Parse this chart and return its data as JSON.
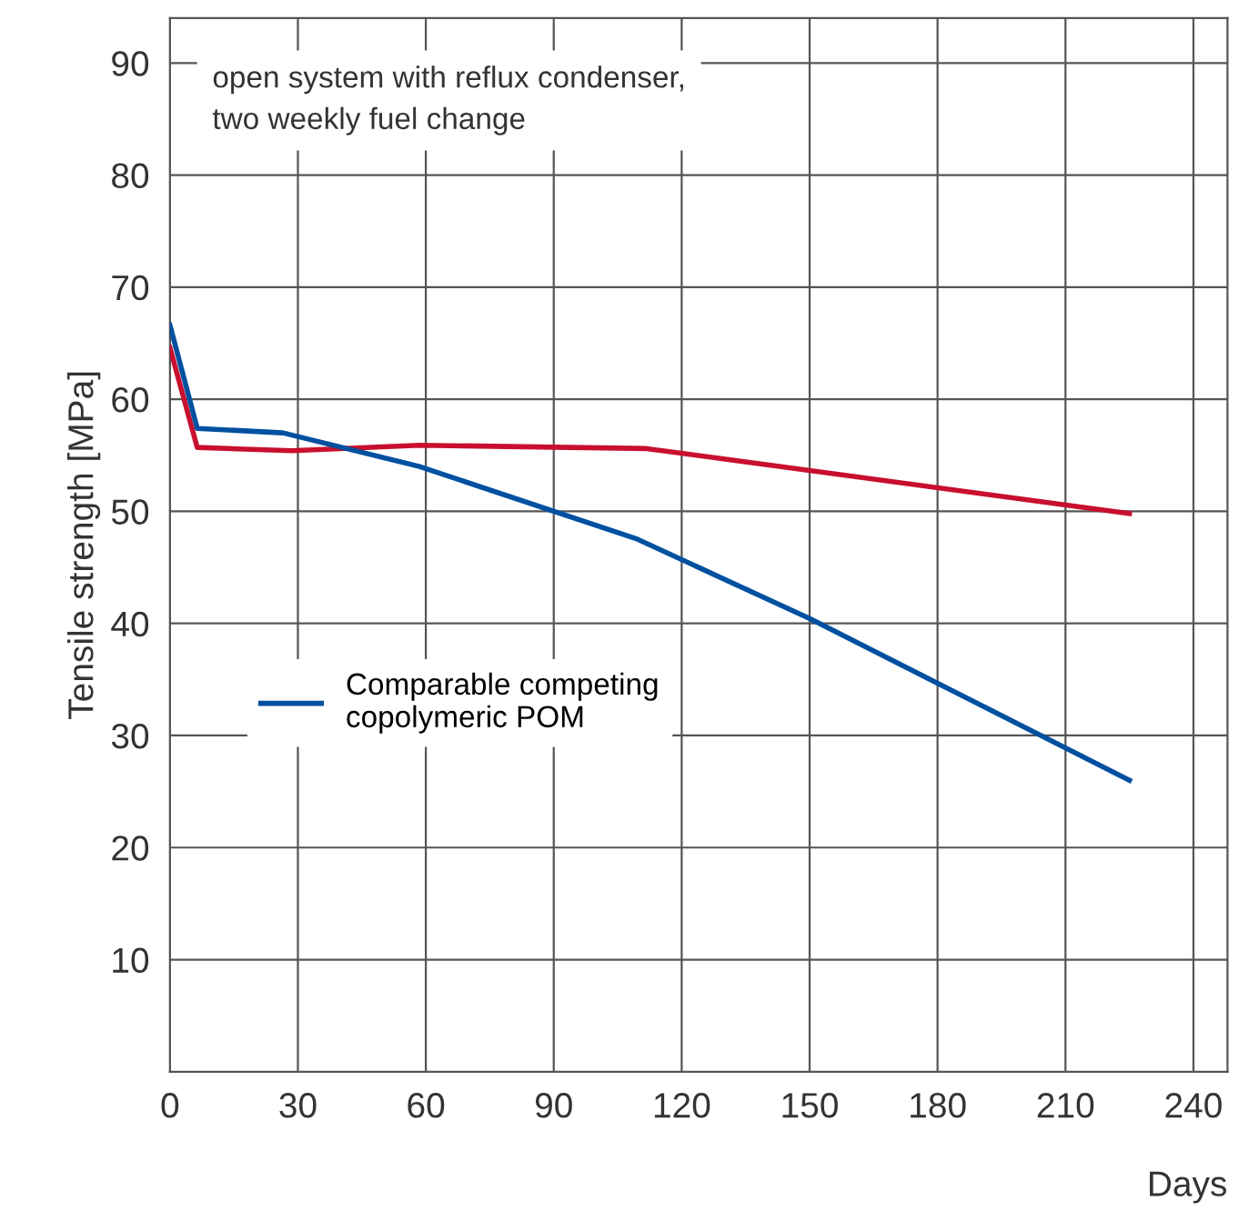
{
  "chart_data": {
    "type": "line",
    "xlabel": "Days",
    "ylabel": "Tensile strength [MPa]",
    "annotations": [
      "open system with reflux condenser,\ntwo weekly fuel change"
    ],
    "series": [
      {
        "color": "#c8102e",
        "x": [
          0,
          6.4,
          28.6,
          58.5,
          111.8,
          225
        ],
        "values": [
          64.6,
          55.7,
          55.4,
          55.9,
          55.6,
          49.8
        ]
      },
      {
        "name": "Comparable competing\ncopolymeric POM",
        "color": "#0050a0",
        "x": [
          0,
          6.4,
          26.5,
          58.5,
          109.7,
          150.2,
          225
        ],
        "values": [
          66.6,
          57.4,
          57.0,
          54.0,
          47.5,
          40.4,
          26.0
        ]
      }
    ],
    "xlim": [
      0,
      248
    ],
    "xticks": [
      0,
      30,
      60,
      90,
      120,
      150,
      180,
      210,
      240
    ],
    "ylim": [
      0,
      94
    ],
    "yticks": [
      10,
      20,
      30,
      40,
      50,
      60,
      70,
      80,
      90
    ],
    "grid": true,
    "legend": "left",
    "marker": "none",
    "line_style": "solid"
  }
}
